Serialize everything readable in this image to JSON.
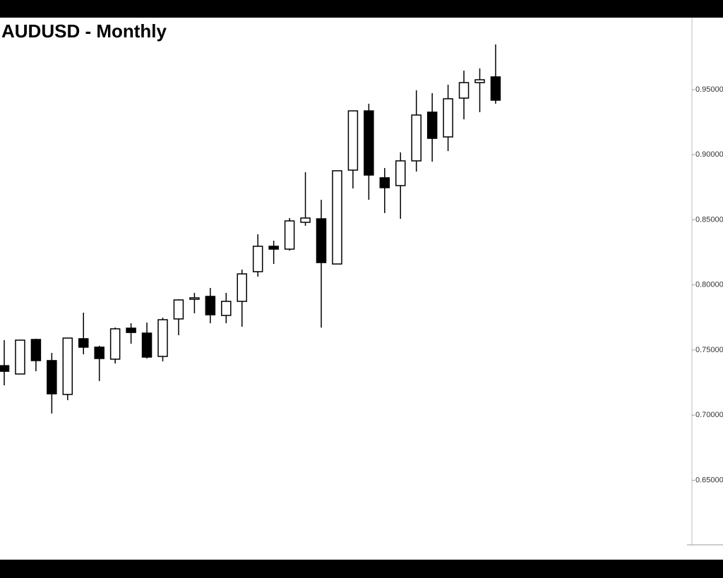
{
  "chart_data": {
    "type": "candlestick",
    "title": "AUDUSD - Monthly",
    "up_color": "#ffffff",
    "down_color": "#000000",
    "line_color": "#000000",
    "open": [
      0.738,
      0.7316,
      0.7581,
      0.7419,
      0.7159,
      0.7587,
      0.7522,
      0.743,
      0.7668,
      0.763,
      0.7451,
      0.7739,
      0.789,
      0.7912,
      0.7766,
      0.7874,
      0.8102,
      0.8297,
      0.8275,
      0.8481,
      0.8508,
      0.8161,
      0.8882,
      0.9337,
      0.8823,
      0.8763,
      0.8953,
      0.9327,
      0.9137,
      0.9435,
      0.9554,
      0.9598
    ],
    "high": [
      0.7576,
      0.7576,
      0.7587,
      0.7478,
      0.7592,
      0.7787,
      0.7533,
      0.7673,
      0.7706,
      0.7711,
      0.7749,
      0.789,
      0.7939,
      0.7977,
      0.7939,
      0.8118,
      0.8389,
      0.834,
      0.8514,
      0.8866,
      0.8654,
      0.8877,
      0.9337,
      0.9392,
      0.8898,
      0.9018,
      0.9495,
      0.9473,
      0.9538,
      0.9646,
      0.9663,
      0.9847
    ],
    "low": [
      0.7229,
      0.7316,
      0.7337,
      0.7012,
      0.7115,
      0.7467,
      0.7262,
      0.7397,
      0.7549,
      0.7435,
      0.7413,
      0.7614,
      0.7782,
      0.7706,
      0.7706,
      0.7679,
      0.8064,
      0.8161,
      0.8264,
      0.8454,
      0.7673,
      0.8161,
      0.8741,
      0.8654,
      0.8552,
      0.8508,
      0.8871,
      0.8947,
      0.9028,
      0.9272,
      0.9327,
      0.9392
    ],
    "close": [
      0.7337,
      0.7576,
      0.7419,
      0.7164,
      0.7592,
      0.7522,
      0.7435,
      0.7663,
      0.7635,
      0.7446,
      0.7733,
      0.7885,
      0.7901,
      0.7771,
      0.7874,
      0.8085,
      0.8297,
      0.8275,
      0.8492,
      0.8514,
      0.8172,
      0.8877,
      0.9337,
      0.8844,
      0.8747,
      0.8953,
      0.9305,
      0.9126,
      0.943,
      0.9554,
      0.9576,
      0.9419
    ],
    "ylim": [
      0.6004,
      1.0053
    ],
    "yticks": [
      {
        "value": 0.65,
        "label": "0.65000"
      },
      {
        "value": 0.7,
        "label": "0.70000"
      },
      {
        "value": 0.75,
        "label": "0.75000"
      },
      {
        "value": 0.8,
        "label": "0.80000"
      },
      {
        "value": 0.85,
        "label": "0.85000"
      },
      {
        "value": 0.9,
        "label": "0.90000"
      },
      {
        "value": 0.95,
        "label": "0.95000"
      }
    ]
  }
}
